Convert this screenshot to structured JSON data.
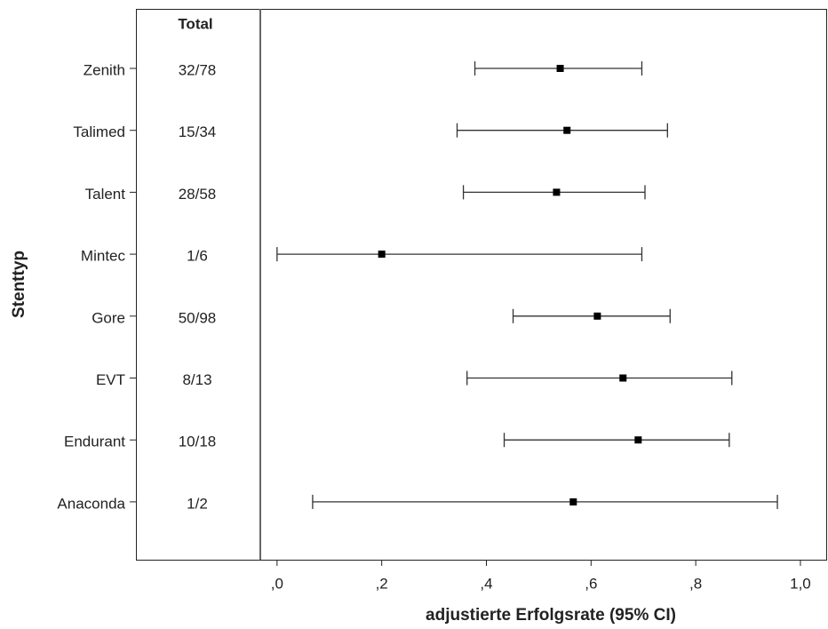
{
  "chart_data": {
    "type": "forest",
    "y_label": "Stenttyp",
    "x_label": "adjustierte Erfolgsrate (95% CI)",
    "total_header": "Total",
    "categories": [
      "Zenith",
      "Talimed",
      "Talent",
      "Mintec",
      "Gore",
      "EVT",
      "Endurant",
      "Anaconda"
    ],
    "totals": [
      "32/78",
      "15/34",
      "28/58",
      "1/6",
      "50/98",
      "8/13",
      "10/18",
      "1/2"
    ],
    "values": [
      0.541,
      0.554,
      0.534,
      0.2,
      0.612,
      0.661,
      0.69,
      0.566
    ],
    "lower": [
      0.378,
      0.344,
      0.356,
      0.0,
      0.451,
      0.363,
      0.434,
      0.068
    ],
    "upper": [
      0.697,
      0.746,
      0.703,
      0.697,
      0.751,
      0.869,
      0.864,
      0.956
    ],
    "color": "#000000",
    "xlim": [
      -0.032,
      1.051
    ],
    "xticks": [
      {
        "value": 0,
        "label": ",0"
      },
      {
        "value": 0.2,
        "label": ",2"
      },
      {
        "value": 0.4,
        "label": ",4"
      },
      {
        "value": 0.6,
        "label": ",6"
      },
      {
        "value": 0.8,
        "label": ",8"
      },
      {
        "value": 1.0,
        "label": "1,0"
      }
    ]
  }
}
